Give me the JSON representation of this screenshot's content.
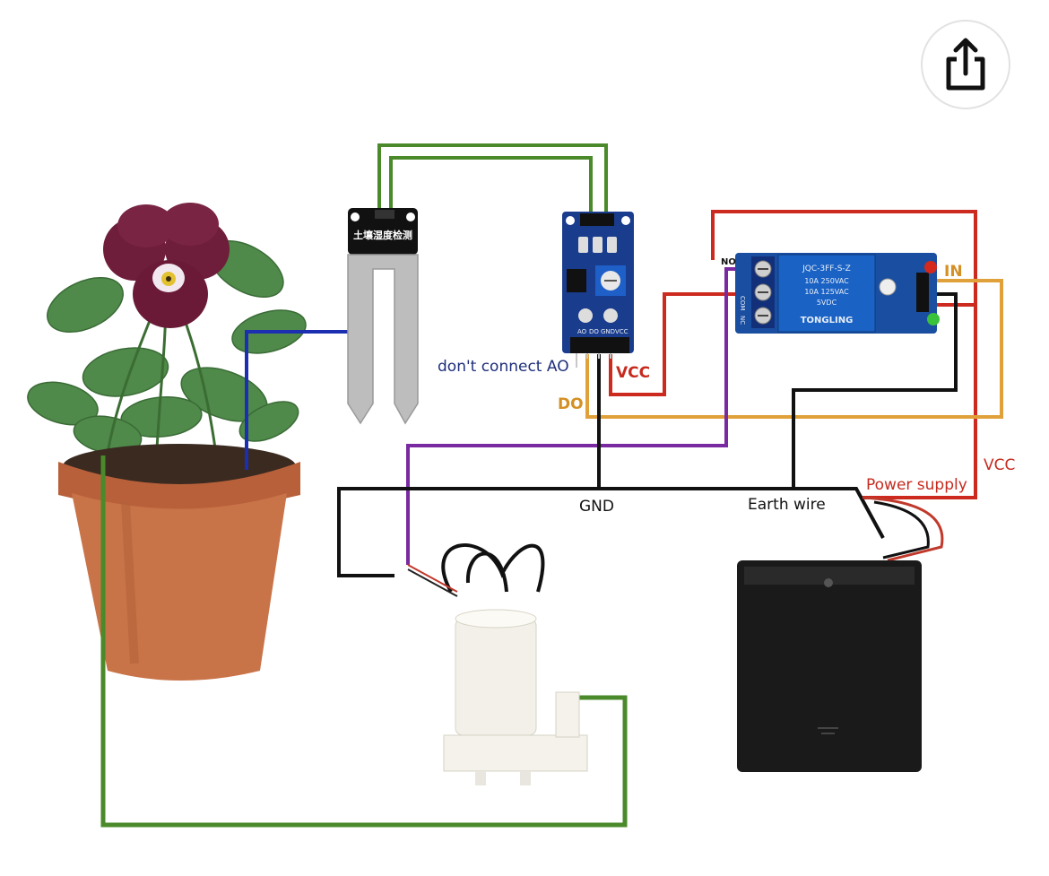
{
  "toolbar": {
    "share_icon": "share-icon"
  },
  "diagram": {
    "labels": {
      "dont_connect_ao": "don't connect AO",
      "vcc_sensor": "VCC",
      "do": "DO",
      "gnd": "GND",
      "earth_wire": "Earth wire",
      "power_supply": "Power supply",
      "vcc_relay": "VCC",
      "in": "IN",
      "no": "NO",
      "com": "COM",
      "nc": "NC"
    },
    "sensor_probe_text": "土壤湿度检测",
    "relay_text": [
      "JQC-3FF-S-Z",
      "10A 250VAC",
      "10A 125VAC",
      "5VDC",
      "TONGLING"
    ],
    "module_text": [
      "AO",
      "DO",
      "GND",
      "VCC"
    ],
    "wire_colors": {
      "green": "#4a8a2a",
      "blue": "#1c2fb0",
      "red": "#cc2a1e",
      "orange": "#e0a13a",
      "purple": "#7a2aa0",
      "black": "#111111"
    },
    "label_colors": {
      "navy": "#1e2f7a",
      "red": "#c62a1e",
      "orange": "#d49024",
      "black": "#111111"
    }
  }
}
